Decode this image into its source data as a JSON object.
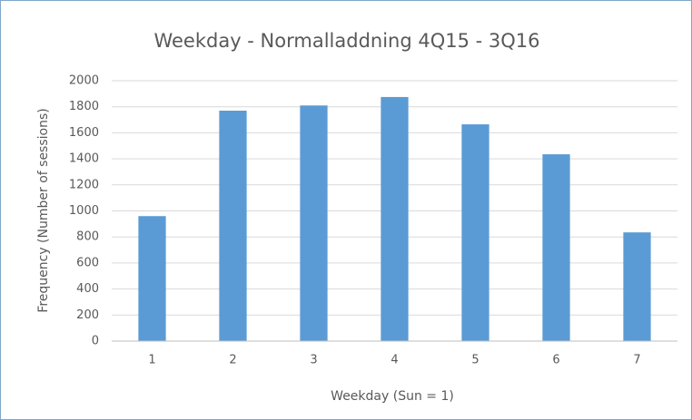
{
  "chart_data": {
    "type": "bar",
    "title": "Weekday - Normalladdning 4Q15 - 3Q16",
    "x_label": "Weekday (Sun = 1)",
    "y_label": "Frequency (Number of sessions)",
    "categories": [
      "1",
      "2",
      "3",
      "4",
      "5",
      "6",
      "7"
    ],
    "values": [
      960,
      1770,
      1810,
      1875,
      1665,
      1435,
      835
    ],
    "color": "#5b9bd5",
    "ylim": [
      0,
      2000
    ],
    "yticks": [
      0,
      200,
      400,
      600,
      800,
      1000,
      1200,
      1400,
      1600,
      1800,
      2000
    ],
    "grid": true
  }
}
